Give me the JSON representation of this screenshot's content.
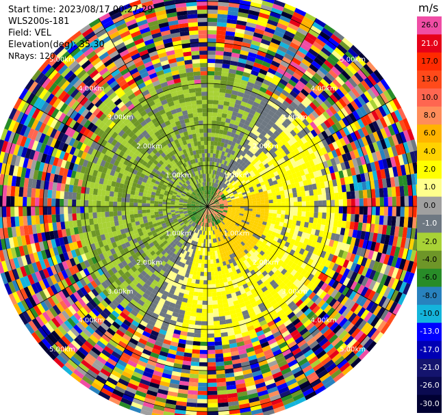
{
  "header": {
    "start_time": "Start time: 2023/08/17 00:27:29",
    "instrument": "WLS200s-181",
    "field": "Field: VEL",
    "elevation": "Elevation(deg): 35.30",
    "nrays": "NRays: 120"
  },
  "colorbar": {
    "title": "m/s",
    "levels": [
      {
        "label": "26.0",
        "color": "#f04da5",
        "text": "#000000"
      },
      {
        "label": "21.0",
        "color": "#e60019",
        "text": "#ffffff"
      },
      {
        "label": "17.0",
        "color": "#ff2a00",
        "text": "#000000"
      },
      {
        "label": "13.0",
        "color": "#ff4a1a",
        "text": "#000000"
      },
      {
        "label": "10.0",
        "color": "#ff6650",
        "text": "#000000"
      },
      {
        "label": "8.0",
        "color": "#ff8d5a",
        "text": "#000000"
      },
      {
        "label": "6.0",
        "color": "#ffb400",
        "text": "#000000"
      },
      {
        "label": "4.0",
        "color": "#ffd200",
        "text": "#000000"
      },
      {
        "label": "2.0",
        "color": "#ffff00",
        "text": "#000000"
      },
      {
        "label": "1.0",
        "color": "#ffff8c",
        "text": "#000000"
      },
      {
        "label": "0.0",
        "color": "#a0a0a0",
        "text": "#000000"
      },
      {
        "label": "-1.0",
        "color": "#6e7882",
        "text": "#ffffff"
      },
      {
        "label": "-2.0",
        "color": "#a8d236",
        "text": "#000000"
      },
      {
        "label": "-4.0",
        "color": "#6e9628",
        "text": "#000000"
      },
      {
        "label": "-6.0",
        "color": "#288c28",
        "text": "#000000"
      },
      {
        "label": "-8.0",
        "color": "#2882be",
        "text": "#000000"
      },
      {
        "label": "-10.0",
        "color": "#14b4dc",
        "text": "#000000"
      },
      {
        "label": "-13.0",
        "color": "#0000ff",
        "text": "#ffffff"
      },
      {
        "label": "-17.0",
        "color": "#0000b4",
        "text": "#ffffff"
      },
      {
        "label": "-21.0",
        "color": "#14146e",
        "text": "#ffffff"
      },
      {
        "label": "-26.0",
        "color": "#0a0a50",
        "text": "#ffffff"
      },
      {
        "label": "-30.0",
        "color": "#000032",
        "text": "#ffffff"
      }
    ]
  },
  "chart_data": {
    "type": "heatmap",
    "projection": "polar-ppi",
    "field": "VEL",
    "units": "m/s",
    "nrays": 120,
    "range_rings_km": [
      {
        "range": 1,
        "label": "1.00km"
      },
      {
        "range": 2,
        "label": "2.00km"
      },
      {
        "range": 3,
        "label": "3.00km"
      },
      {
        "range": 4,
        "label": "4.00km"
      },
      {
        "range": 5,
        "label": "5.00km"
      }
    ],
    "max_range_km": 5.3,
    "spokes_deg": [
      0,
      30,
      60,
      90,
      120,
      150,
      180,
      210,
      240,
      270,
      300,
      330
    ],
    "velocity_pattern": "negative (green/grey) toward north-west, positive (yellow/orange) toward south-east, noisy random colours beyond ~3.5 km"
  }
}
